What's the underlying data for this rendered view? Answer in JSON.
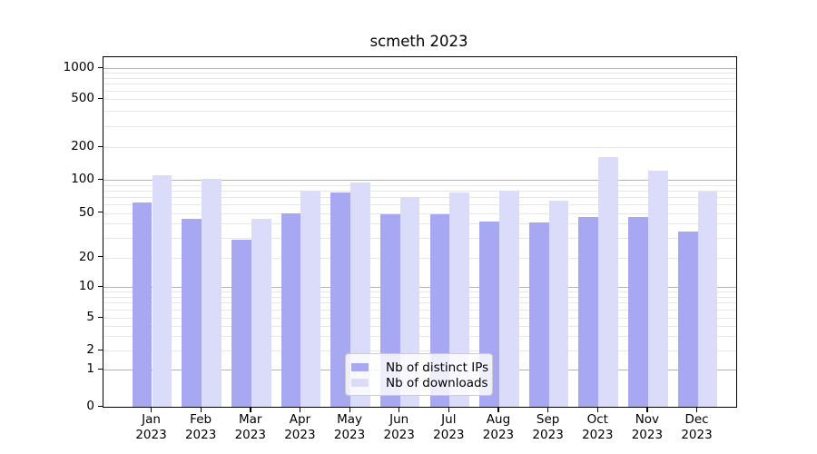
{
  "title": "scmeth 2023",
  "chart_data": {
    "type": "bar",
    "title": "scmeth 2023",
    "categories": [
      "Jan",
      "Feb",
      "Mar",
      "Apr",
      "May",
      "Jun",
      "Jul",
      "Aug",
      "Sep",
      "Oct",
      "Nov",
      "Dec"
    ],
    "category_year": "2023",
    "series": [
      {
        "name": "Nb of distinct IPs",
        "color": "#a8a8f2",
        "values": [
          62,
          44,
          29,
          50,
          76,
          49,
          49,
          42,
          41,
          46,
          46,
          34
        ]
      },
      {
        "name": "Nb of downloads",
        "color": "#dbdbfa",
        "values": [
          111,
          102,
          44,
          79,
          94,
          70,
          76,
          79,
          65,
          162,
          121,
          78
        ]
      }
    ],
    "yscale": "symlog",
    "yticks": [
      0,
      1,
      2,
      5,
      10,
      20,
      50,
      100,
      200,
      500,
      1000
    ],
    "ylim": [
      0,
      1250
    ],
    "grid": true,
    "legend_position": "lower center"
  },
  "colors": {
    "grid_major": "#b3b3b3",
    "grid_minor": "#e6e6e6",
    "axis": "#000000",
    "background": "#ffffff"
  }
}
